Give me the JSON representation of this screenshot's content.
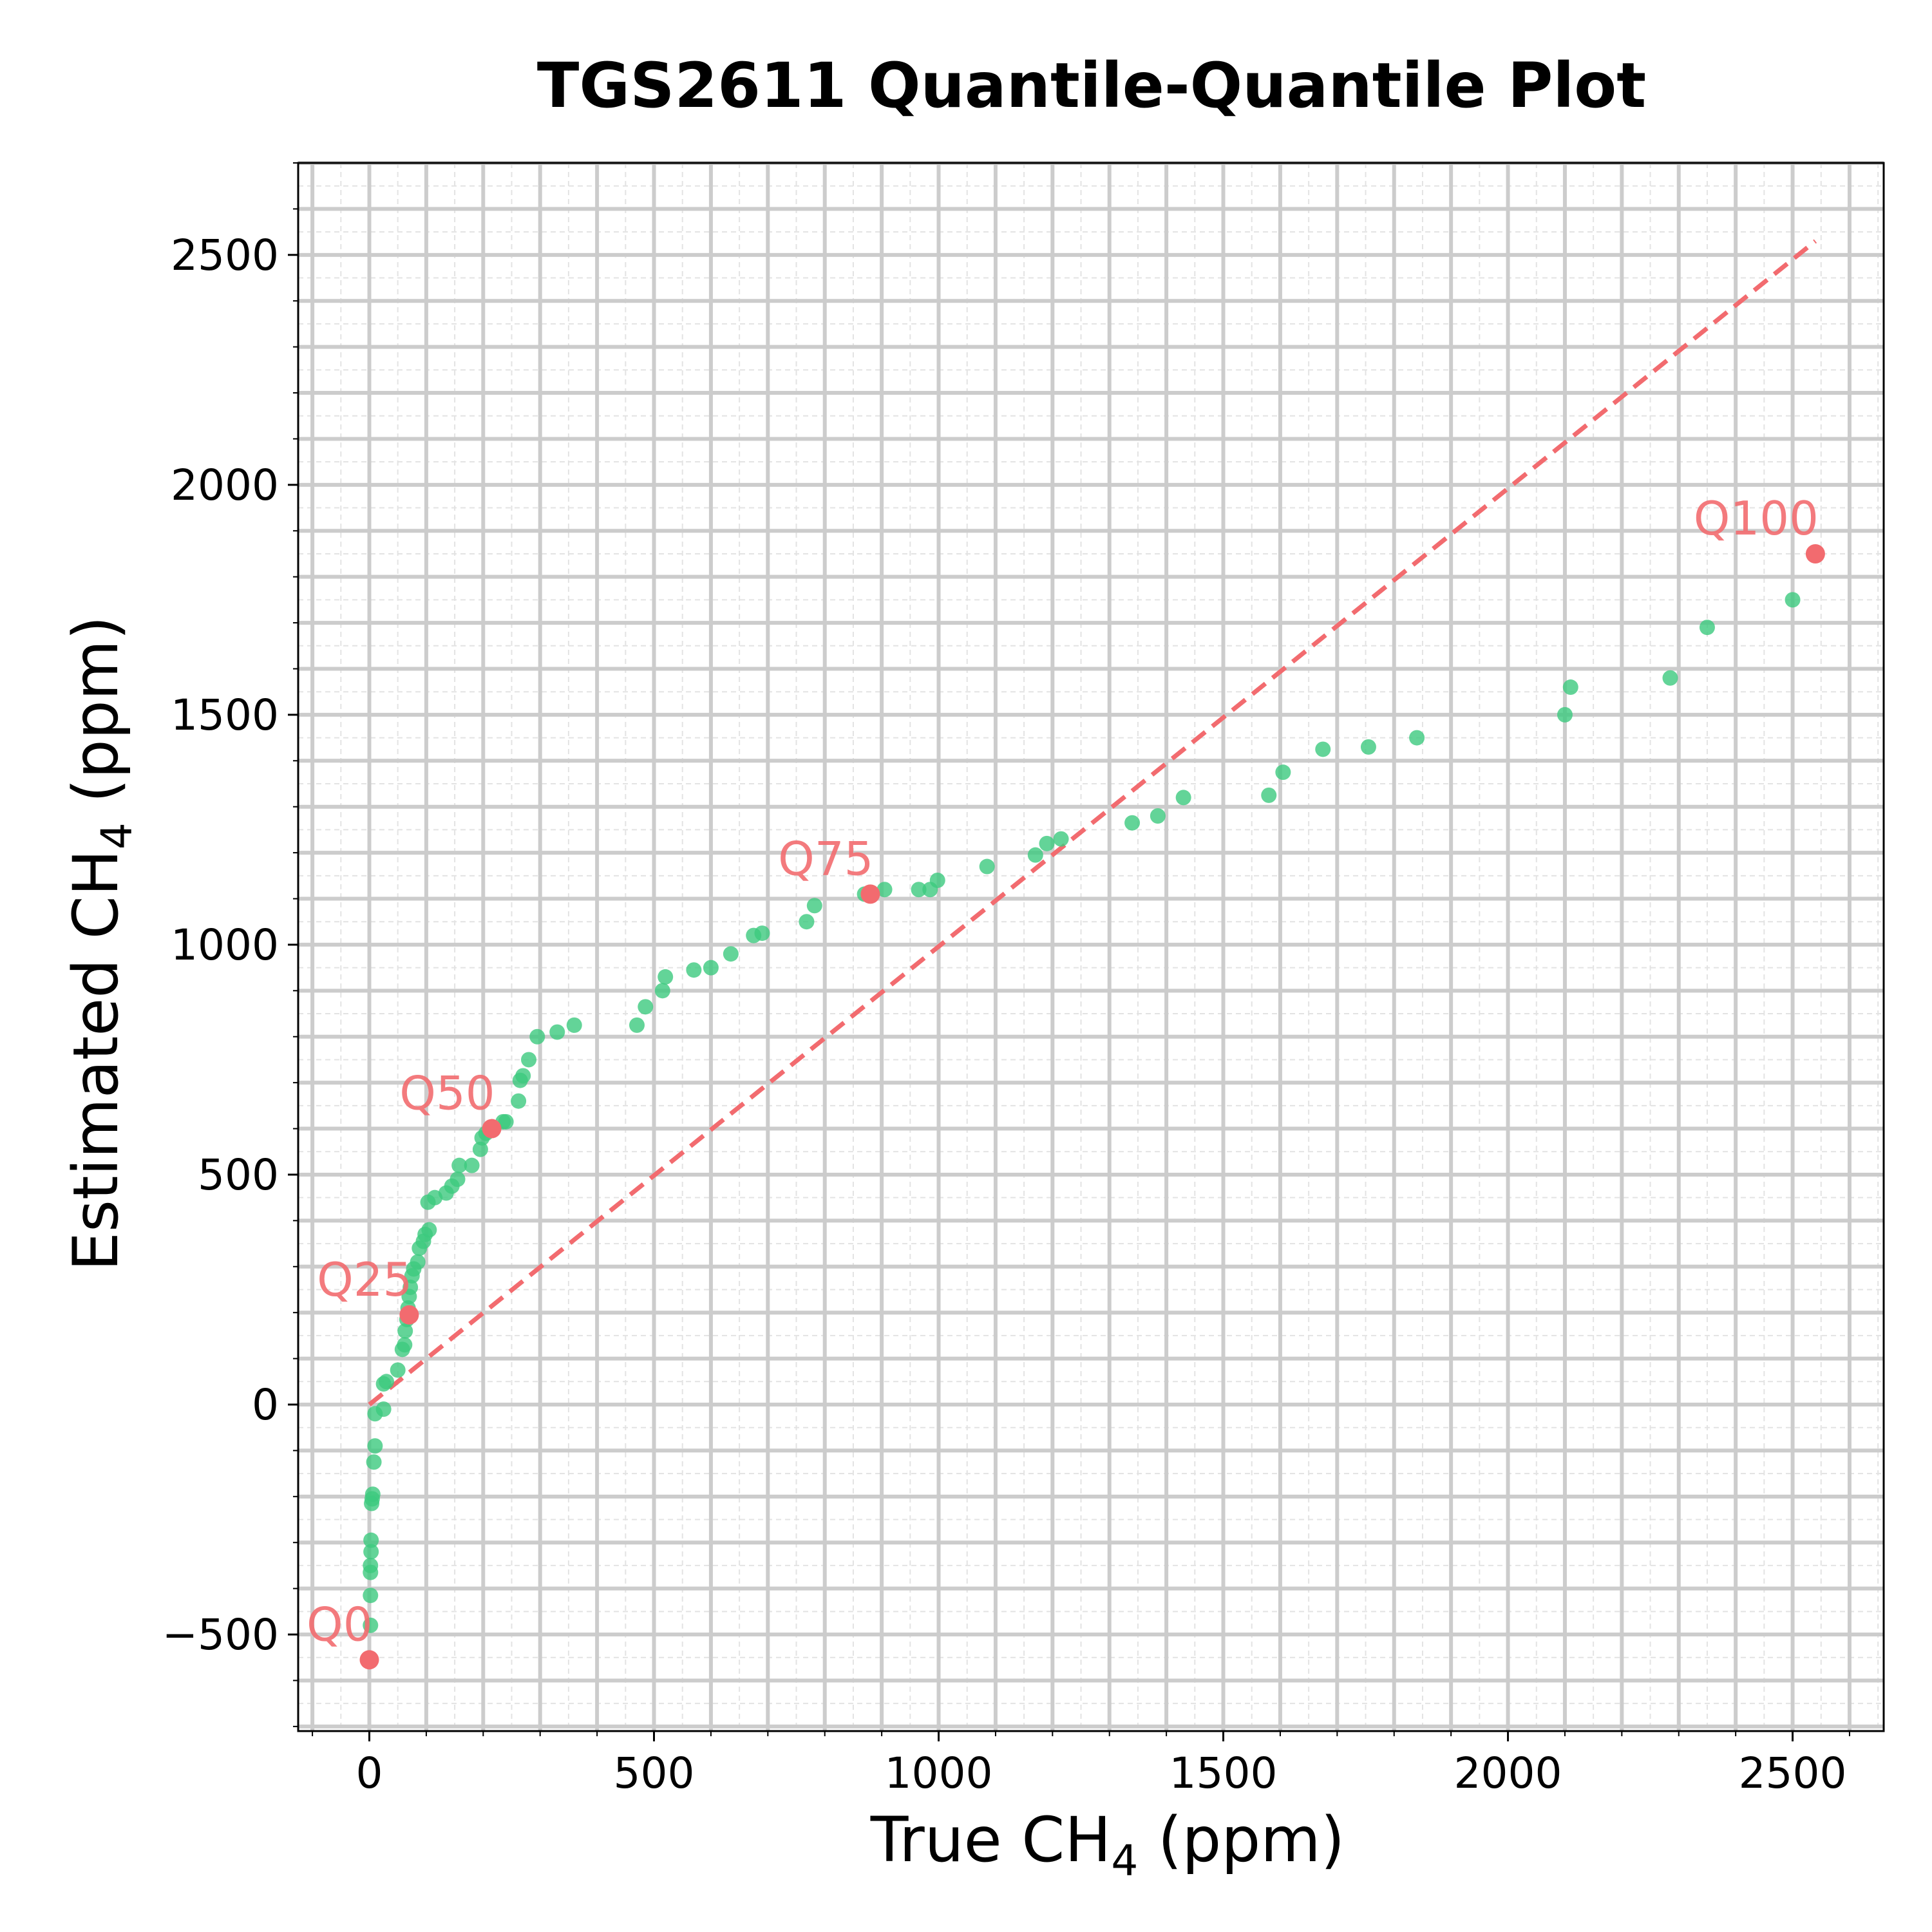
{
  "chart_data": {
    "type": "scatter",
    "title": "TGS2611 Quantile-Quantile Plot",
    "xlabel_main": "True CH",
    "xlabel_sub": "4",
    "xlabel_unit": " (ppm)",
    "ylabel_main": "Estimated CH",
    "ylabel_sub": "4",
    "ylabel_unit": " (ppm)",
    "xlim": [
      -125,
      2660
    ],
    "ylim": [
      -710,
      2700
    ],
    "xticks": [
      0,
      500,
      1000,
      1500,
      2000,
      2500
    ],
    "yticks": [
      -500,
      0,
      500,
      1000,
      1500,
      2000,
      2500
    ],
    "xtick_labels": [
      "0",
      "500",
      "1000",
      "1500",
      "2000",
      "2500"
    ],
    "ytick_labels": [
      "−500",
      "0",
      "500",
      "1000",
      "1500",
      "2000",
      "2500"
    ],
    "grid": true,
    "colors": {
      "points": "#3cc97e",
      "highlight": "#f26b6f",
      "reference_line": "#f26b6f",
      "grid_major": "#cccccc",
      "grid_minor": "#e3e3e3"
    },
    "reference_line": {
      "x": [
        0,
        2540
      ],
      "y": [
        0,
        2530
      ]
    },
    "points": [
      {
        "x": 2,
        "y": -480
      },
      {
        "x": 2,
        "y": -415
      },
      {
        "x": 2,
        "y": -365
      },
      {
        "x": 2,
        "y": -350
      },
      {
        "x": 3,
        "y": -320
      },
      {
        "x": 3,
        "y": -295
      },
      {
        "x": 4,
        "y": -215
      },
      {
        "x": 5,
        "y": -205
      },
      {
        "x": 6,
        "y": -195
      },
      {
        "x": 8,
        "y": -125
      },
      {
        "x": 10,
        "y": -90
      },
      {
        "x": 10,
        "y": -20
      },
      {
        "x": 25,
        "y": -10
      },
      {
        "x": 25,
        "y": 45
      },
      {
        "x": 30,
        "y": 50
      },
      {
        "x": 50,
        "y": 75
      },
      {
        "x": 58,
        "y": 120
      },
      {
        "x": 62,
        "y": 130
      },
      {
        "x": 63,
        "y": 160
      },
      {
        "x": 66,
        "y": 185
      },
      {
        "x": 68,
        "y": 210
      },
      {
        "x": 70,
        "y": 235
      },
      {
        "x": 72,
        "y": 255
      },
      {
        "x": 75,
        "y": 280
      },
      {
        "x": 78,
        "y": 295
      },
      {
        "x": 85,
        "y": 310
      },
      {
        "x": 88,
        "y": 340
      },
      {
        "x": 95,
        "y": 355
      },
      {
        "x": 98,
        "y": 370
      },
      {
        "x": 105,
        "y": 380
      },
      {
        "x": 103,
        "y": 440
      },
      {
        "x": 115,
        "y": 450
      },
      {
        "x": 135,
        "y": 460
      },
      {
        "x": 145,
        "y": 475
      },
      {
        "x": 155,
        "y": 490
      },
      {
        "x": 158,
        "y": 520
      },
      {
        "x": 180,
        "y": 520
      },
      {
        "x": 195,
        "y": 555
      },
      {
        "x": 198,
        "y": 580
      },
      {
        "x": 205,
        "y": 590
      },
      {
        "x": 235,
        "y": 615
      },
      {
        "x": 240,
        "y": 615
      },
      {
        "x": 262,
        "y": 660
      },
      {
        "x": 265,
        "y": 705
      },
      {
        "x": 270,
        "y": 715
      },
      {
        "x": 280,
        "y": 750
      },
      {
        "x": 295,
        "y": 800
      },
      {
        "x": 330,
        "y": 810
      },
      {
        "x": 360,
        "y": 825
      },
      {
        "x": 470,
        "y": 825
      },
      {
        "x": 485,
        "y": 865
      },
      {
        "x": 515,
        "y": 900
      },
      {
        "x": 520,
        "y": 930
      },
      {
        "x": 570,
        "y": 945
      },
      {
        "x": 600,
        "y": 950
      },
      {
        "x": 635,
        "y": 980
      },
      {
        "x": 675,
        "y": 1020
      },
      {
        "x": 690,
        "y": 1025
      },
      {
        "x": 768,
        "y": 1050
      },
      {
        "x": 782,
        "y": 1085
      },
      {
        "x": 870,
        "y": 1110
      },
      {
        "x": 905,
        "y": 1120
      },
      {
        "x": 965,
        "y": 1120
      },
      {
        "x": 985,
        "y": 1120
      },
      {
        "x": 998,
        "y": 1140
      },
      {
        "x": 1085,
        "y": 1170
      },
      {
        "x": 1170,
        "y": 1195
      },
      {
        "x": 1190,
        "y": 1220
      },
      {
        "x": 1215,
        "y": 1230
      },
      {
        "x": 1340,
        "y": 1265
      },
      {
        "x": 1385,
        "y": 1280
      },
      {
        "x": 1430,
        "y": 1320
      },
      {
        "x": 1580,
        "y": 1325
      },
      {
        "x": 1605,
        "y": 1375
      },
      {
        "x": 1675,
        "y": 1425
      },
      {
        "x": 1755,
        "y": 1430
      },
      {
        "x": 1840,
        "y": 1450
      },
      {
        "x": 2100,
        "y": 1500
      },
      {
        "x": 2110,
        "y": 1560
      },
      {
        "x": 2285,
        "y": 1580
      },
      {
        "x": 2350,
        "y": 1690
      },
      {
        "x": 2500,
        "y": 1750
      }
    ],
    "quantiles": [
      {
        "label": "Q0",
        "x": 0,
        "y": -555
      },
      {
        "label": "Q25",
        "x": 70,
        "y": 195
      },
      {
        "label": "Q50",
        "x": 215,
        "y": 600
      },
      {
        "label": "Q75",
        "x": 880,
        "y": 1110
      },
      {
        "label": "Q100",
        "x": 2540,
        "y": 1850
      }
    ]
  }
}
